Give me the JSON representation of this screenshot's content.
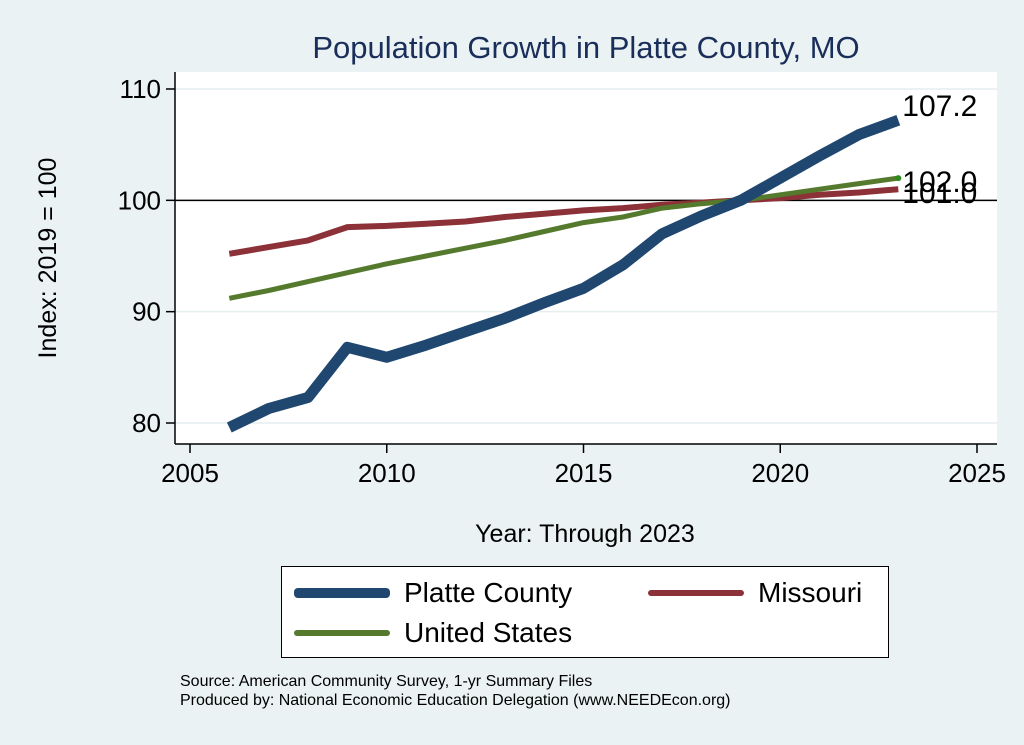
{
  "chart_data": {
    "type": "line",
    "title": "Population Growth in Platte County, MO",
    "xlabel": "Year: Through 2023",
    "ylabel": "Index: 2019 = 100",
    "xlim": [
      2005,
      2025
    ],
    "ylim": [
      78.5,
      111.5
    ],
    "xticks": [
      2005,
      2010,
      2015,
      2020,
      2025
    ],
    "yticks": [
      80,
      90,
      100,
      110
    ],
    "reference_line": 100,
    "x": [
      2006,
      2007,
      2008,
      2009,
      2010,
      2011,
      2012,
      2013,
      2014,
      2015,
      2016,
      2017,
      2018,
      2019,
      2020,
      2021,
      2022,
      2023
    ],
    "series": [
      {
        "name": "Platte  County",
        "color": "#1f4770",
        "values": [
          79.6,
          81.3,
          82.3,
          86.8,
          85.9,
          87.0,
          88.2,
          89.4,
          90.8,
          92.1,
          94.2,
          97.0,
          98.6,
          100.0,
          102.0,
          104.0,
          105.9,
          107.2
        ],
        "end_label": "107.2"
      },
      {
        "name": "Missouri",
        "color": "#8c3137",
        "values": [
          95.2,
          95.8,
          96.4,
          97.6,
          97.7,
          97.9,
          98.1,
          98.5,
          98.8,
          99.1,
          99.3,
          99.6,
          99.8,
          100.0,
          100.2,
          100.5,
          100.7,
          101.0
        ],
        "end_label": "101.0"
      },
      {
        "name": "United States",
        "color": "#557a2e",
        "values": [
          91.2,
          91.9,
          92.7,
          93.5,
          94.3,
          95.0,
          95.7,
          96.4,
          97.2,
          98.0,
          98.5,
          99.3,
          99.7,
          100.0,
          100.5,
          101.0,
          101.5,
          102.0
        ],
        "end_label": "102.0"
      }
    ],
    "legend": [
      "Platte  County",
      "Missouri",
      "United States"
    ]
  },
  "footer": {
    "source": "Source: American Community Survey, 1-yr Summary Files",
    "produced_by": "Produced by: National Economic Education Delegation (www.NEEDEcon.org)"
  }
}
